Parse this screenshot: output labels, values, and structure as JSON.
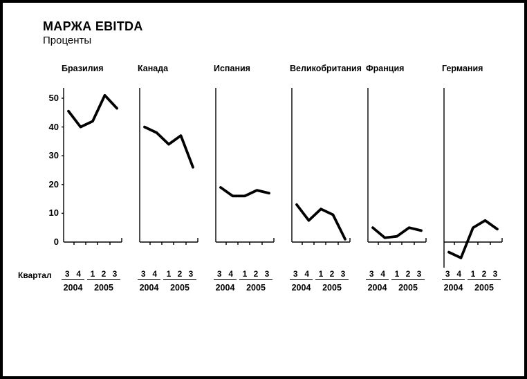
{
  "header": {
    "title": "МАРЖА EBITDA",
    "subtitle": "Проценты"
  },
  "axis": {
    "quarter_axis_label": "Квартал"
  },
  "chart_data": {
    "type": "line",
    "title": "МАРЖА EBITDA",
    "subtitle": "Проценты",
    "unit": "percent",
    "layout": "small-multiples, 6 panels in one row, shared y-axis labels on first panel only",
    "x": [
      "Q3 2004",
      "Q4 2004",
      "Q1 2005",
      "Q2 2005",
      "Q3 2005"
    ],
    "x_groups": [
      {
        "year": "2004",
        "quarters": [
          "3",
          "4"
        ]
      },
      {
        "year": "2005",
        "quarters": [
          "1",
          "2",
          "3"
        ]
      }
    ],
    "quarter_axis_label": "Квартал",
    "yticks": [
      0,
      10,
      20,
      30,
      40,
      50
    ],
    "ylim": [
      -8,
      53
    ],
    "grid": false,
    "legend": "none",
    "line_color": "#000000",
    "series": [
      {
        "name": "Бразилия",
        "values": [
          45.5,
          40,
          42,
          51,
          46.5
        ]
      },
      {
        "name": "Канада",
        "values": [
          40,
          38,
          34,
          37,
          26
        ]
      },
      {
        "name": "Испания",
        "values": [
          19,
          16,
          16,
          18,
          17
        ]
      },
      {
        "name": "Великобритания",
        "values": [
          13,
          7.5,
          11.5,
          9.5,
          1
        ]
      },
      {
        "name": "Франция",
        "values": [
          5,
          1.5,
          2,
          5,
          4
        ]
      },
      {
        "name": "Германия",
        "values": [
          -3.5,
          -5.5,
          5,
          7.5,
          4.5
        ]
      }
    ]
  }
}
